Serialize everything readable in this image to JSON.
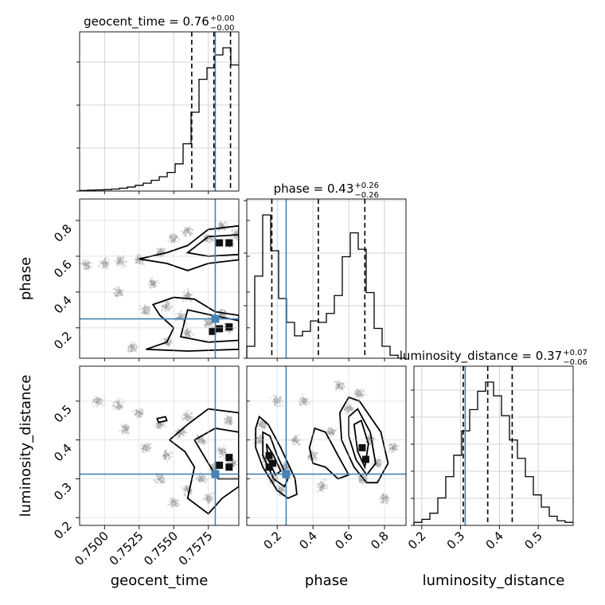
{
  "chart_data": {
    "type": "corner",
    "parameters": [
      {
        "name": "geocent_time",
        "label": "geocent_time",
        "range": [
          0.7482,
          0.7597
        ],
        "ticks": [
          0.75,
          0.7525,
          0.755,
          0.7575
        ],
        "tick_labels": [
          "0.7500",
          "0.7525",
          "0.7550",
          "0.7575"
        ],
        "truth": 0.758,
        "quantiles": [
          0.7563,
          0.7579,
          0.7591
        ],
        "title": {
          "main": "geocent_time = 0.76",
          "sup": "+0.00",
          "sub": "−0.00"
        },
        "hist_counts": [
          0.4,
          0.6,
          0.8,
          1,
          1.4,
          2,
          2.8,
          4,
          5.5,
          7.5,
          10,
          13,
          19,
          33,
          55,
          78,
          86,
          95,
          100,
          88
        ],
        "diag_ytick_fracs": [
          0.0,
          0.27,
          0.54,
          0.81
        ]
      },
      {
        "name": "phase",
        "label": "phase",
        "range": [
          0.03,
          0.92
        ],
        "ticks": [
          0.2,
          0.4,
          0.6,
          0.8
        ],
        "tick_labels": [
          "0.2",
          "0.4",
          "0.6",
          "0.8"
        ],
        "truth": 0.25,
        "quantiles": [
          0.17,
          0.43,
          0.69
        ],
        "title": {
          "main": "phase = 0.43",
          "sup": "+0.26",
          "sub": "−0.26"
        },
        "hist_counts": [
          8,
          55,
          96,
          72,
          40,
          24,
          15,
          18,
          25,
          24,
          30,
          42,
          68,
          84,
          73,
          44,
          20,
          8,
          2,
          0
        ],
        "diag_ytick_fracs": [
          0.0,
          0.33,
          0.66,
          0.99
        ]
      },
      {
        "name": "luminosity_distance",
        "label": "luminosity_distance",
        "range": [
          0.18,
          0.59
        ],
        "ticks": [
          0.2,
          0.3,
          0.4,
          0.5
        ],
        "tick_labels": [
          "0.2",
          "0.3",
          "0.4",
          "0.5"
        ],
        "truth": 0.312,
        "quantiles": [
          0.307,
          0.37,
          0.433
        ],
        "title": {
          "main": "luminosity_distance = 0.37",
          "sup": "+0.07",
          "sub": "−0.06"
        },
        "hist_counts": [
          2,
          4,
          8,
          18,
          32,
          46,
          62,
          76,
          88,
          94,
          85,
          72,
          56,
          44,
          32,
          20,
          12,
          6,
          3,
          2
        ],
        "diag_ytick_fracs": [
          0.0,
          0.17,
          0.34,
          0.51,
          0.68,
          0.85
        ]
      }
    ],
    "truth_color": "#4682b4",
    "density_regions": [
      {
        "x_param": "geocent_time",
        "y_param": "phase",
        "points": [
          [
            0.7487,
            0.55
          ],
          [
            0.75,
            0.56
          ],
          [
            0.7512,
            0.57
          ],
          [
            0.7525,
            0.58
          ],
          [
            0.754,
            0.62
          ],
          [
            0.755,
            0.7
          ],
          [
            0.756,
            0.74
          ],
          [
            0.7575,
            0.7
          ],
          [
            0.759,
            0.67
          ],
          [
            0.7585,
            0.77
          ],
          [
            0.756,
            0.38
          ],
          [
            0.7545,
            0.32
          ],
          [
            0.753,
            0.3
          ],
          [
            0.7545,
            0.12
          ],
          [
            0.756,
            0.17
          ],
          [
            0.7575,
            0.23
          ],
          [
            0.759,
            0.2
          ],
          [
            0.7585,
            0.28
          ],
          [
            0.752,
            0.09
          ],
          [
            0.7535,
            0.45
          ],
          [
            0.751,
            0.4
          ],
          [
            0.7555,
            0.26
          ],
          [
            0.7595,
            0.72
          ]
        ],
        "contours": [
          [
            [
              0.7525,
              0.585
            ],
            [
              0.7545,
              0.62
            ],
            [
              0.756,
              0.66
            ],
            [
              0.7575,
              0.75
            ],
            [
              0.7597,
              0.77
            ],
            [
              0.7597,
              0.58
            ],
            [
              0.7575,
              0.56
            ],
            [
              0.756,
              0.52
            ],
            [
              0.7545,
              0.56
            ]
          ],
          [
            [
              0.756,
              0.62
            ],
            [
              0.7575,
              0.71
            ],
            [
              0.7597,
              0.72
            ],
            [
              0.7597,
              0.61
            ],
            [
              0.7575,
              0.6
            ]
          ],
          [
            [
              0.7535,
              0.33
            ],
            [
              0.755,
              0.37
            ],
            [
              0.7565,
              0.36
            ],
            [
              0.758,
              0.29
            ],
            [
              0.7597,
              0.27
            ],
            [
              0.7597,
              0.08
            ],
            [
              0.756,
              0.07
            ],
            [
              0.753,
              0.08
            ],
            [
              0.7545,
              0.12
            ],
            [
              0.755,
              0.2
            ],
            [
              0.754,
              0.27
            ]
          ],
          [
            [
              0.756,
              0.3
            ],
            [
              0.7578,
              0.27
            ],
            [
              0.7597,
              0.24
            ],
            [
              0.7597,
              0.13
            ],
            [
              0.7575,
              0.12
            ],
            [
              0.7555,
              0.15
            ],
            [
              0.7558,
              0.24
            ]
          ]
        ],
        "dark_cells": [
          [
            0.7583,
            0.675
          ],
          [
            0.759,
            0.675
          ],
          [
            0.7583,
            0.195
          ],
          [
            0.759,
            0.205
          ],
          [
            0.7578,
            0.18
          ]
        ]
      },
      {
        "x_param": "geocent_time",
        "y_param": "luminosity_distance",
        "points": [
          [
            0.7495,
            0.5
          ],
          [
            0.751,
            0.49
          ],
          [
            0.7525,
            0.47
          ],
          [
            0.754,
            0.44
          ],
          [
            0.7555,
            0.42
          ],
          [
            0.757,
            0.4
          ],
          [
            0.7585,
            0.37
          ],
          [
            0.758,
            0.33
          ],
          [
            0.757,
            0.3
          ],
          [
            0.756,
            0.27
          ],
          [
            0.755,
            0.24
          ],
          [
            0.754,
            0.3
          ],
          [
            0.753,
            0.38
          ],
          [
            0.7515,
            0.43
          ],
          [
            0.756,
            0.46
          ],
          [
            0.759,
            0.45
          ],
          [
            0.7575,
            0.25
          ],
          [
            0.7545,
            0.36
          ],
          [
            0.7592,
            0.34
          ]
        ],
        "contours": [
          [
            [
              0.7547,
              0.4
            ],
            [
              0.756,
              0.44
            ],
            [
              0.7575,
              0.48
            ],
            [
              0.7597,
              0.47
            ],
            [
              0.7597,
              0.28
            ],
            [
              0.7585,
              0.25
            ],
            [
              0.7575,
              0.21
            ],
            [
              0.756,
              0.25
            ],
            [
              0.7565,
              0.33
            ],
            [
              0.7558,
              0.37
            ]
          ],
          [
            [
              0.7565,
              0.4
            ],
            [
              0.758,
              0.43
            ],
            [
              0.7597,
              0.42
            ],
            [
              0.7597,
              0.3
            ],
            [
              0.7582,
              0.3
            ],
            [
              0.7575,
              0.34
            ]
          ],
          [
            [
              0.7538,
              0.455
            ],
            [
              0.7544,
              0.46
            ],
            [
              0.7545,
              0.45
            ],
            [
              0.7539,
              0.445
            ]
          ]
        ],
        "dark_cells": [
          [
            0.7583,
            0.335
          ],
          [
            0.759,
            0.355
          ],
          [
            0.759,
            0.33
          ]
        ]
      },
      {
        "x_param": "phase",
        "y_param": "luminosity_distance",
        "points": [
          [
            0.1,
            0.4
          ],
          [
            0.14,
            0.35
          ],
          [
            0.18,
            0.3
          ],
          [
            0.22,
            0.27
          ],
          [
            0.12,
            0.44
          ],
          [
            0.25,
            0.33
          ],
          [
            0.3,
            0.4
          ],
          [
            0.4,
            0.36
          ],
          [
            0.5,
            0.42
          ],
          [
            0.6,
            0.48
          ],
          [
            0.66,
            0.52
          ],
          [
            0.72,
            0.4
          ],
          [
            0.76,
            0.34
          ],
          [
            0.68,
            0.3
          ],
          [
            0.35,
            0.5
          ],
          [
            0.55,
            0.54
          ],
          [
            0.85,
            0.38
          ],
          [
            0.2,
            0.5
          ],
          [
            0.45,
            0.28
          ],
          [
            0.8,
            0.25
          ]
        ],
        "contours": [
          [
            [
              0.08,
              0.43
            ],
            [
              0.1,
              0.46
            ],
            [
              0.15,
              0.44
            ],
            [
              0.22,
              0.38
            ],
            [
              0.3,
              0.3
            ],
            [
              0.31,
              0.26
            ],
            [
              0.26,
              0.25
            ],
            [
              0.2,
              0.27
            ],
            [
              0.12,
              0.33
            ],
            [
              0.08,
              0.38
            ]
          ],
          [
            [
              0.12,
              0.42
            ],
            [
              0.16,
              0.41
            ],
            [
              0.2,
              0.36
            ],
            [
              0.26,
              0.3
            ],
            [
              0.24,
              0.28
            ],
            [
              0.18,
              0.3
            ],
            [
              0.12,
              0.36
            ]
          ],
          [
            [
              0.14,
              0.39
            ],
            [
              0.18,
              0.36
            ],
            [
              0.22,
              0.32
            ],
            [
              0.19,
              0.31
            ],
            [
              0.15,
              0.35
            ]
          ],
          [
            [
              0.38,
              0.38
            ],
            [
              0.41,
              0.43
            ],
            [
              0.47,
              0.42
            ],
            [
              0.54,
              0.36
            ],
            [
              0.6,
              0.31
            ],
            [
              0.54,
              0.3
            ],
            [
              0.47,
              0.33
            ],
            [
              0.4,
              0.34
            ]
          ],
          [
            [
              0.55,
              0.47
            ],
            [
              0.6,
              0.51
            ],
            [
              0.66,
              0.5
            ],
            [
              0.78,
              0.42
            ],
            [
              0.82,
              0.34
            ],
            [
              0.76,
              0.29
            ],
            [
              0.7,
              0.29
            ],
            [
              0.63,
              0.33
            ],
            [
              0.56,
              0.4
            ]
          ],
          [
            [
              0.6,
              0.46
            ],
            [
              0.65,
              0.48
            ],
            [
              0.72,
              0.42
            ],
            [
              0.75,
              0.34
            ],
            [
              0.7,
              0.31
            ],
            [
              0.64,
              0.35
            ],
            [
              0.6,
              0.41
            ]
          ],
          [
            [
              0.63,
              0.44
            ],
            [
              0.67,
              0.45
            ],
            [
              0.71,
              0.39
            ],
            [
              0.69,
              0.33
            ],
            [
              0.65,
              0.37
            ]
          ]
        ],
        "dark_cells": [
          [
            0.155,
            0.36
          ],
          [
            0.175,
            0.34
          ],
          [
            0.155,
            0.33
          ],
          [
            0.675,
            0.38
          ],
          [
            0.695,
            0.35
          ]
        ]
      }
    ]
  }
}
